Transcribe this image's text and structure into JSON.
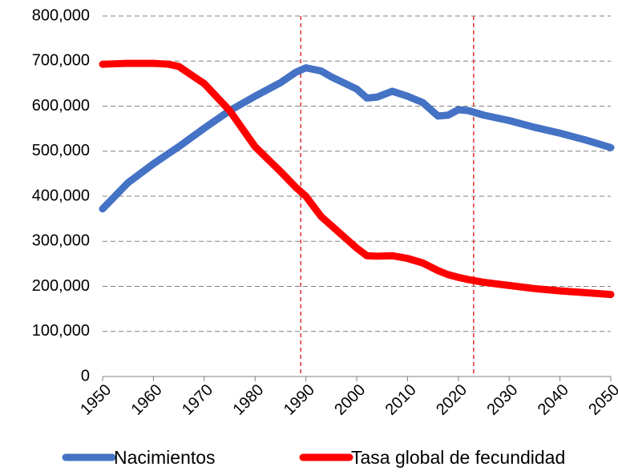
{
  "chart_data": {
    "type": "line",
    "x": [
      1950,
      1955,
      1960,
      1963,
      1965,
      1970,
      1975,
      1980,
      1985,
      1988,
      1990,
      1993,
      1995,
      2000,
      2002,
      2004,
      2007,
      2010,
      2013,
      2016,
      2018,
      2020,
      2022,
      2025,
      2030,
      2035,
      2040,
      2045,
      2050
    ],
    "series": [
      {
        "name": "Nacimientos",
        "color": "#4472c4",
        "values": [
          372000,
          430000,
          472000,
          495000,
          510000,
          551000,
          590000,
          622000,
          652000,
          675000,
          685000,
          678000,
          665000,
          638000,
          618000,
          620000,
          633000,
          622000,
          608000,
          578000,
          580000,
          592000,
          590000,
          580000,
          568000,
          553000,
          540000,
          525000,
          508000
        ]
      },
      {
        "name": "Tasa global de fecundidad",
        "color": "#ff0000",
        "values": [
          693000,
          695000,
          695000,
          693000,
          688000,
          650000,
          590000,
          510000,
          455000,
          420000,
          400000,
          355000,
          335000,
          285000,
          268000,
          267000,
          268000,
          262000,
          252000,
          235000,
          226000,
          220000,
          215000,
          209000,
          202000,
          195000,
          190000,
          186000,
          182000
        ]
      }
    ],
    "xlim": [
      1950,
      2050
    ],
    "xticks": [
      1950,
      1960,
      1970,
      1980,
      1990,
      2000,
      2010,
      2020,
      2030,
      2040,
      2050
    ],
    "ylim": [
      0,
      800000
    ],
    "yticks": [
      0,
      {
        "value": 100000,
        "label": "100,000"
      },
      {
        "value": 200000,
        "label": "200,000"
      },
      {
        "value": 300000,
        "label": "300,000"
      },
      {
        "value": 400000,
        "label": "400,000"
      },
      {
        "value": 500000,
        "label": "500,000"
      },
      {
        "value": 600000,
        "label": "600,000"
      },
      {
        "value": 700000,
        "label": "700,000"
      },
      {
        "value": 800000,
        "label": "800,000"
      }
    ],
    "vlines": [
      1989,
      2023
    ],
    "vline_color": "#e03030",
    "grid": true,
    "legend": "bottom"
  }
}
